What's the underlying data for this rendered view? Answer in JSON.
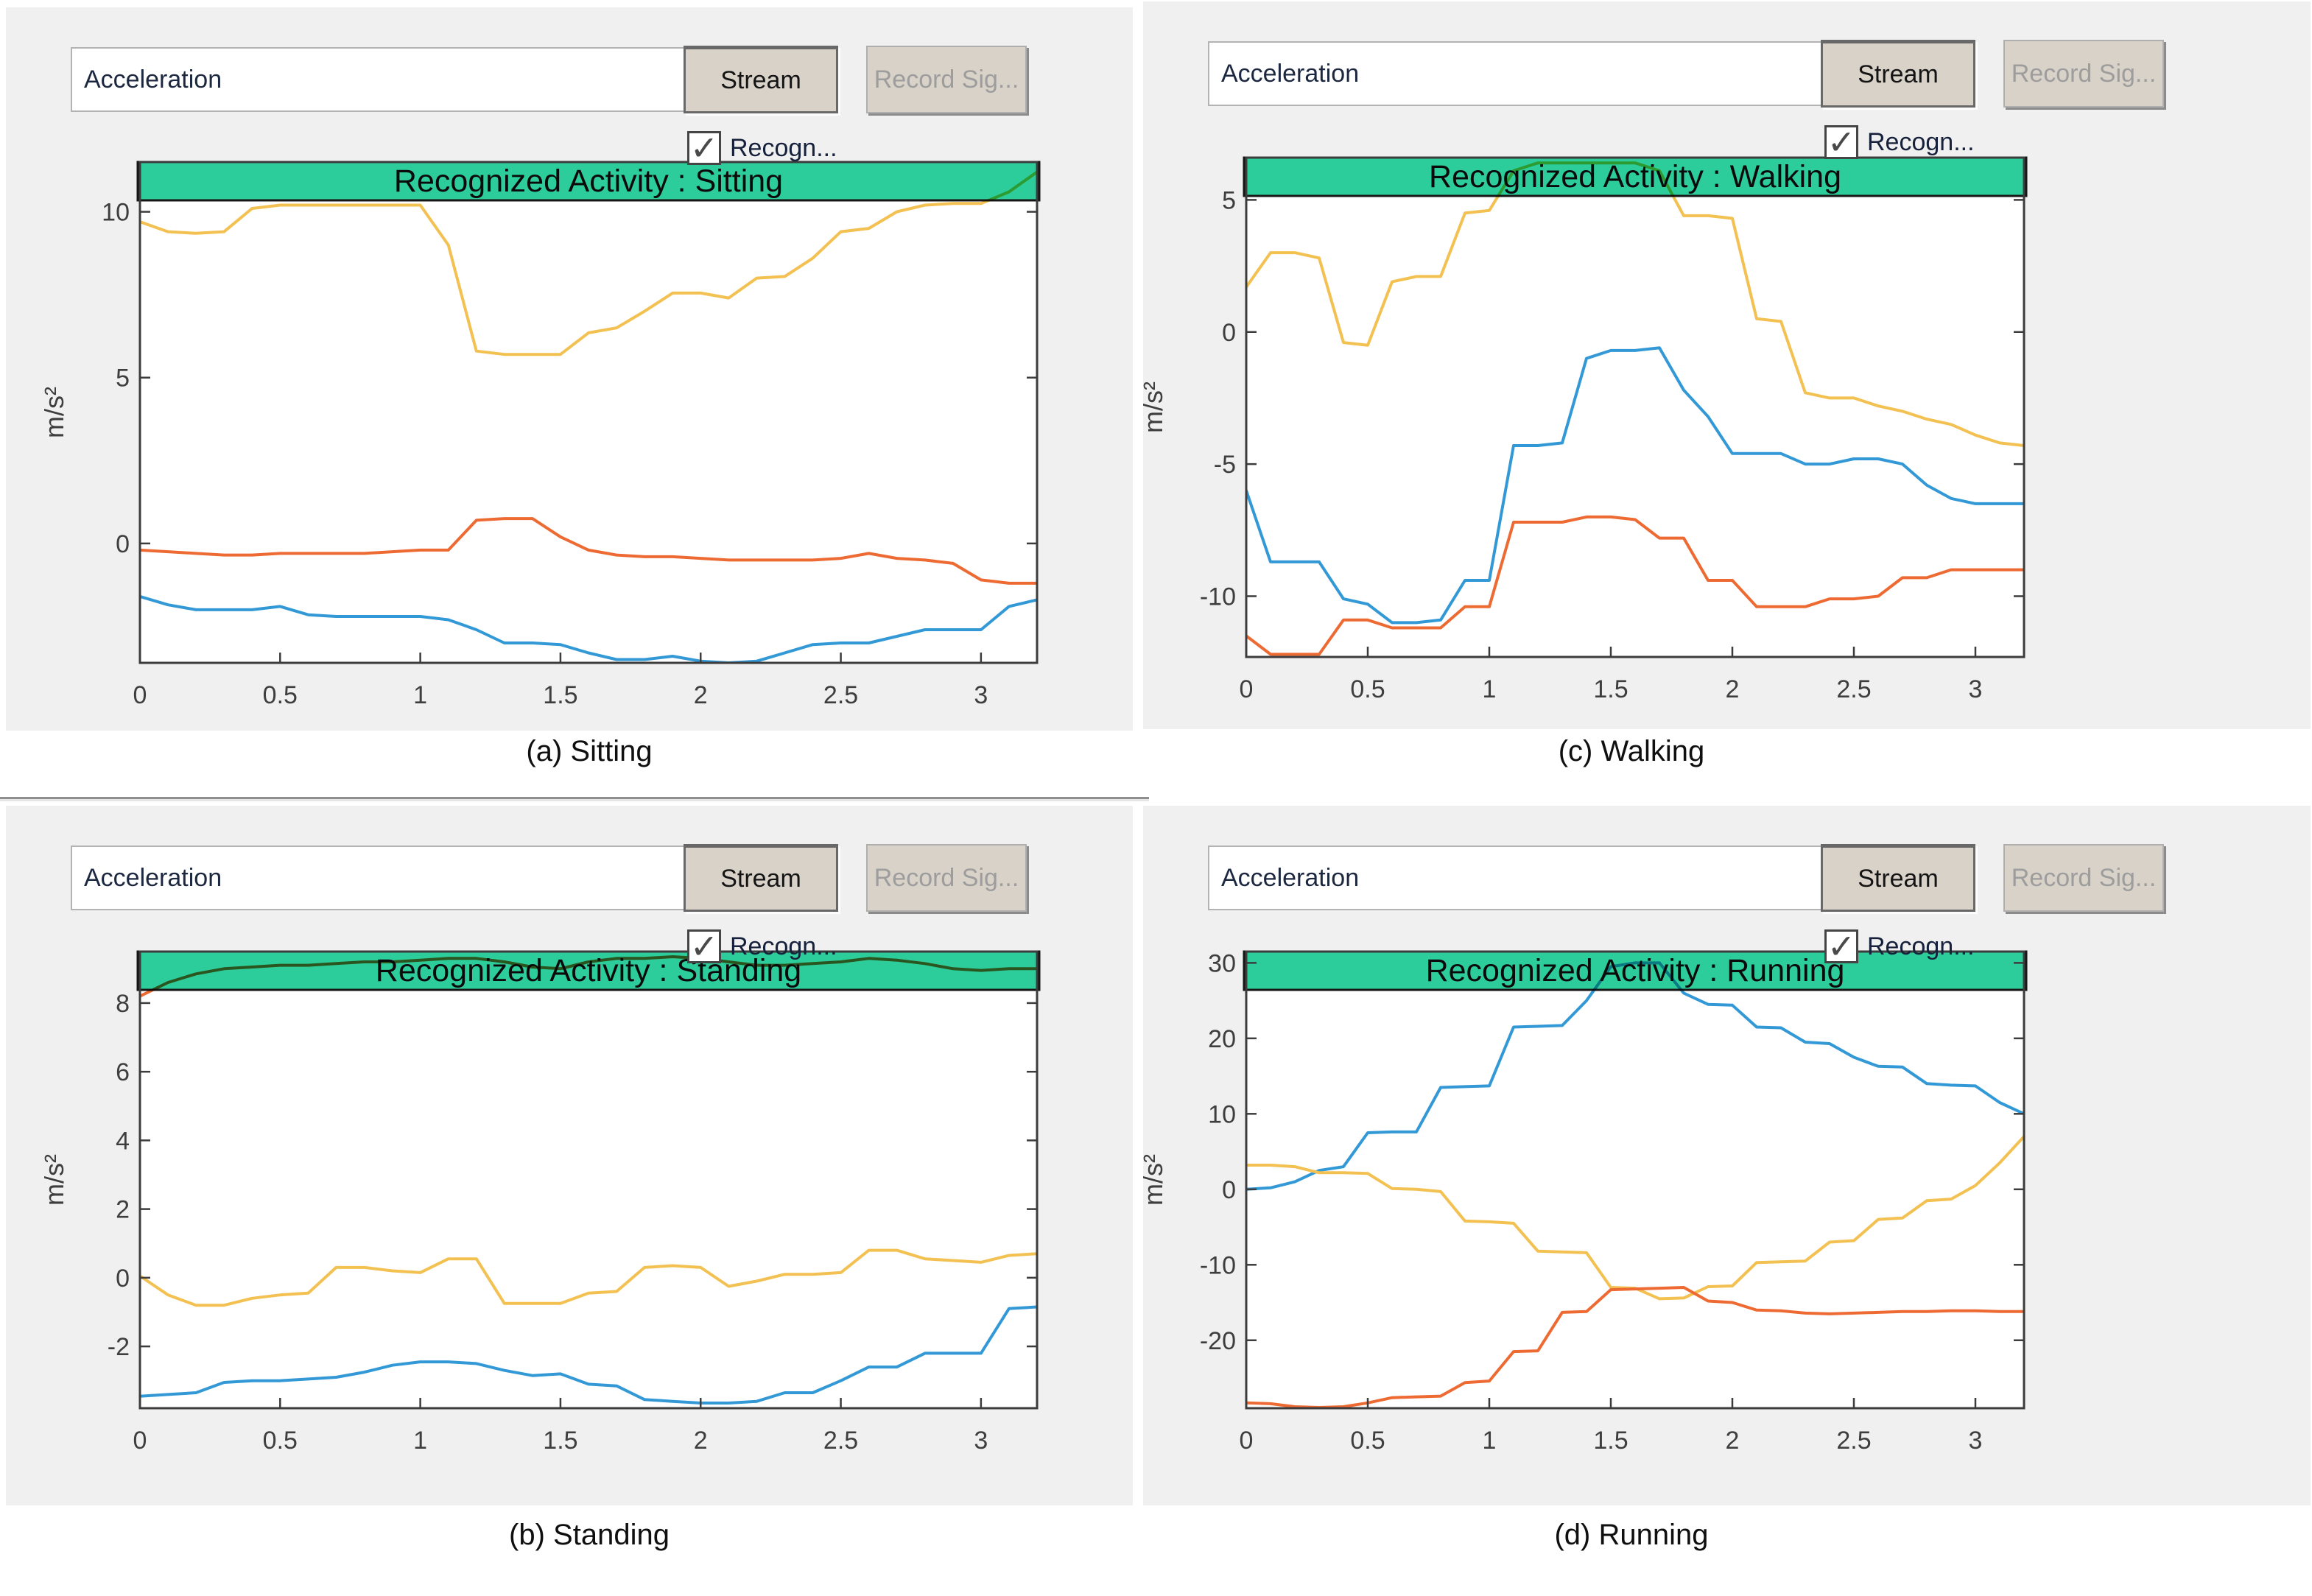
{
  "controls": {
    "sensor_dropdown_value": "Acceleration",
    "stream_button_label": "Stream",
    "record_button_label": "Record Sig...",
    "recognize_checkbox_label": "Recogn...",
    "recognize_checked": true
  },
  "colors": {
    "banner_green": "#2dcd9b",
    "line_blue": "#3399d6",
    "line_orange": "#ed6a33",
    "line_yellow": "#f3c151",
    "panel_bg": "#f1f0f0",
    "axis": "#3c3c3c",
    "tick_text": "#3e3e3e",
    "title_text": "#0a0a0a"
  },
  "chart_data": [
    {
      "type": "line",
      "title": "Recognized Activity : Sitting",
      "caption": "(a) Sitting",
      "ylabel": "m/s²",
      "xlim": [
        0,
        3.2
      ],
      "ylim": [
        -3.6,
        11.5
      ],
      "xticks": [
        0,
        0.5,
        1,
        1.5,
        2,
        2.5,
        3
      ],
      "yticks": [
        10,
        5,
        0
      ],
      "x_start": 0,
      "x_step": 0.1,
      "grid": false,
      "legend": "none",
      "series": [
        {
          "name": "yellow",
          "color": "line_yellow",
          "values": [
            9.7,
            9.4,
            9.35,
            9.4,
            10.1,
            10.2,
            10.2,
            10.2,
            10.2,
            10.2,
            10.2,
            9.0,
            5.8,
            5.7,
            5.7,
            5.7,
            6.35,
            6.5,
            7.0,
            7.55,
            7.55,
            7.4,
            8.0,
            8.05,
            8.6,
            9.4,
            9.5,
            10.0,
            10.2,
            10.25,
            10.25,
            10.6,
            11.2
          ]
        },
        {
          "name": "orange",
          "color": "line_orange",
          "values": [
            -0.2,
            -0.25,
            -0.3,
            -0.35,
            -0.35,
            -0.3,
            -0.3,
            -0.3,
            -0.3,
            -0.25,
            -0.2,
            -0.2,
            0.7,
            0.75,
            0.75,
            0.2,
            -0.2,
            -0.35,
            -0.4,
            -0.4,
            -0.45,
            -0.5,
            -0.5,
            -0.5,
            -0.5,
            -0.45,
            -0.3,
            -0.45,
            -0.5,
            -0.6,
            -1.1,
            -1.2,
            -1.2
          ]
        },
        {
          "name": "blue",
          "color": "line_blue",
          "values": [
            -1.6,
            -1.85,
            -2.0,
            -2.0,
            -2.0,
            -1.9,
            -2.15,
            -2.2,
            -2.2,
            -2.2,
            -2.2,
            -2.3,
            -2.6,
            -3.0,
            -3.0,
            -3.05,
            -3.3,
            -3.5,
            -3.5,
            -3.4,
            -3.55,
            -3.6,
            -3.55,
            -3.3,
            -3.05,
            -3.0,
            -3.0,
            -2.8,
            -2.6,
            -2.6,
            -2.6,
            -1.9,
            -1.7
          ]
        }
      ]
    },
    {
      "type": "line",
      "title": "Recognized Activity : Walking",
      "caption": "(c) Walking",
      "ylabel": "m/s²",
      "xlim": [
        0,
        3.2
      ],
      "ylim": [
        -12.3,
        6.6
      ],
      "xticks": [
        0,
        0.5,
        1,
        1.5,
        2,
        2.5,
        3
      ],
      "yticks": [
        5,
        0,
        -5,
        -10
      ],
      "x_start": 0,
      "x_step": 0.1,
      "grid": false,
      "legend": "none",
      "series": [
        {
          "name": "yellow",
          "color": "line_yellow",
          "values": [
            1.7,
            3.0,
            3.0,
            2.8,
            -0.4,
            -0.5,
            1.9,
            2.1,
            2.1,
            4.5,
            4.6,
            6.1,
            6.4,
            6.4,
            6.4,
            6.4,
            6.4,
            6.1,
            4.4,
            4.4,
            4.3,
            0.5,
            0.4,
            -2.3,
            -2.5,
            -2.5,
            -2.8,
            -3.0,
            -3.3,
            -3.5,
            -3.9,
            -4.2,
            -4.3
          ]
        },
        {
          "name": "orange",
          "color": "line_orange",
          "values": [
            -11.5,
            -12.2,
            -12.2,
            -12.2,
            -10.9,
            -10.9,
            -11.2,
            -11.2,
            -11.2,
            -10.4,
            -10.4,
            -7.2,
            -7.2,
            -7.2,
            -7.0,
            -7.0,
            -7.1,
            -7.8,
            -7.8,
            -9.4,
            -9.4,
            -10.4,
            -10.4,
            -10.4,
            -10.1,
            -10.1,
            -10.0,
            -9.3,
            -9.3,
            -9.0,
            -9.0,
            -9.0,
            -9.0
          ]
        },
        {
          "name": "blue",
          "color": "line_blue",
          "values": [
            -6.0,
            -8.7,
            -8.7,
            -8.7,
            -10.1,
            -10.3,
            -11.0,
            -11.0,
            -10.9,
            -9.4,
            -9.4,
            -4.3,
            -4.3,
            -4.2,
            -1.0,
            -0.7,
            -0.7,
            -0.6,
            -2.2,
            -3.2,
            -4.6,
            -4.6,
            -4.6,
            -5.0,
            -5.0,
            -4.8,
            -4.8,
            -5.0,
            -5.8,
            -6.3,
            -6.5,
            -6.5,
            -6.5
          ]
        }
      ]
    },
    {
      "type": "line",
      "title": "Recognized Activity : Standing",
      "caption": "(b) Standing",
      "ylabel": "m/s²",
      "xlim": [
        0,
        3.2
      ],
      "ylim": [
        -3.8,
        9.5
      ],
      "xticks": [
        0,
        0.5,
        1,
        1.5,
        2,
        2.5,
        3
      ],
      "yticks": [
        8,
        6,
        4,
        2,
        0,
        -2
      ],
      "x_start": 0,
      "x_step": 0.1,
      "grid": false,
      "legend": "none",
      "series": [
        {
          "name": "orange",
          "color": "line_orange",
          "values": [
            8.2,
            8.6,
            8.85,
            9.0,
            9.05,
            9.1,
            9.1,
            9.15,
            9.2,
            9.2,
            9.25,
            9.3,
            9.3,
            9.2,
            9.05,
            9.0,
            9.2,
            9.3,
            9.3,
            9.35,
            9.3,
            9.2,
            9.1,
            9.1,
            9.15,
            9.2,
            9.3,
            9.25,
            9.15,
            9.0,
            8.95,
            9.0,
            9.0
          ]
        },
        {
          "name": "yellow",
          "color": "line_yellow",
          "values": [
            0.05,
            -0.5,
            -0.8,
            -0.8,
            -0.6,
            -0.5,
            -0.45,
            0.3,
            0.3,
            0.2,
            0.15,
            0.55,
            0.55,
            -0.75,
            -0.75,
            -0.75,
            -0.45,
            -0.4,
            0.3,
            0.35,
            0.3,
            -0.25,
            -0.1,
            0.1,
            0.1,
            0.15,
            0.8,
            0.8,
            0.55,
            0.5,
            0.45,
            0.65,
            0.7
          ]
        },
        {
          "name": "blue",
          "color": "line_blue",
          "values": [
            -3.45,
            -3.4,
            -3.35,
            -3.05,
            -3.0,
            -3.0,
            -2.95,
            -2.9,
            -2.75,
            -2.55,
            -2.45,
            -2.45,
            -2.5,
            -2.7,
            -2.85,
            -2.8,
            -3.1,
            -3.15,
            -3.55,
            -3.6,
            -3.65,
            -3.65,
            -3.6,
            -3.35,
            -3.35,
            -3.0,
            -2.6,
            -2.6,
            -2.2,
            -2.2,
            -2.2,
            -0.9,
            -0.85
          ]
        }
      ]
    },
    {
      "type": "line",
      "title": "Recognized Activity : Running",
      "caption": "(d) Running",
      "ylabel": "m/s²",
      "xlim": [
        0,
        3.2
      ],
      "ylim": [
        -29,
        31.5
      ],
      "xticks": [
        0,
        0.5,
        1,
        1.5,
        2,
        2.5,
        3
      ],
      "yticks": [
        30,
        20,
        10,
        0,
        -10,
        -20
      ],
      "x_start": 0,
      "x_step": 0.1,
      "grid": false,
      "legend": "none",
      "series": [
        {
          "name": "blue",
          "color": "line_blue",
          "values": [
            0,
            0.2,
            1.0,
            2.5,
            3.0,
            7.5,
            7.6,
            7.6,
            13.5,
            13.6,
            13.7,
            21.5,
            21.6,
            21.7,
            25.0,
            29.5,
            30.0,
            30.0,
            26.0,
            24.5,
            24.4,
            21.5,
            21.4,
            19.5,
            19.3,
            17.5,
            16.3,
            16.2,
            14.0,
            13.8,
            13.7,
            11.5,
            10.0
          ]
        },
        {
          "name": "yellow",
          "color": "line_yellow",
          "values": [
            3.2,
            3.2,
            3.0,
            2.2,
            2.2,
            2.1,
            0.1,
            0.0,
            -0.3,
            -4.2,
            -4.3,
            -4.5,
            -8.2,
            -8.3,
            -8.4,
            -13.0,
            -13.1,
            -14.5,
            -14.4,
            -12.9,
            -12.8,
            -9.7,
            -9.6,
            -9.5,
            -7.0,
            -6.8,
            -4.0,
            -3.8,
            -1.5,
            -1.3,
            0.5,
            3.5,
            7.0
          ]
        },
        {
          "name": "orange",
          "color": "line_orange",
          "values": [
            -28.3,
            -28.4,
            -28.8,
            -28.9,
            -28.8,
            -28.3,
            -27.6,
            -27.5,
            -27.4,
            -25.6,
            -25.4,
            -21.5,
            -21.4,
            -16.3,
            -16.2,
            -13.3,
            -13.2,
            -13.1,
            -13.0,
            -14.8,
            -15.0,
            -16.0,
            -16.1,
            -16.4,
            -16.5,
            -16.4,
            -16.3,
            -16.2,
            -16.2,
            -16.1,
            -16.1,
            -16.2,
            -16.2
          ]
        }
      ]
    }
  ]
}
